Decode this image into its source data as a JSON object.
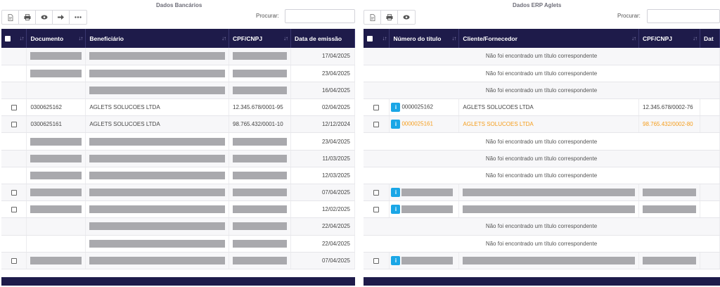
{
  "colors": {
    "header_bg": "#1e1b4a",
    "info_button": "#1aa6e6",
    "highlight_text": "#f59d1b",
    "redaction": "#a9a9ad"
  },
  "left": {
    "title": "Dados Bancários",
    "search_label": "Procurar:",
    "toolbar_icons": [
      "document-icon",
      "print-icon",
      "eye-icon",
      "arrow-right-icon",
      "ellipsis-icon"
    ],
    "columns": [
      "Documento",
      "Beneficiário",
      "CPF/CNPJ",
      "Data de emissão"
    ],
    "rows": [
      {
        "checkbox": false,
        "redacted": true,
        "documento": "",
        "beneficiario": "",
        "cpf": "",
        "data": "17/04/2025"
      },
      {
        "checkbox": false,
        "redacted": true,
        "documento": "",
        "beneficiario": "",
        "cpf": "",
        "data": "23/04/2025"
      },
      {
        "checkbox": false,
        "redacted": true,
        "partial": true,
        "documento": "",
        "beneficiario": "",
        "cpf": "",
        "data": "16/04/2025"
      },
      {
        "checkbox": true,
        "redacted": false,
        "documento": "0300625162",
        "beneficiario": "AGLETS SOLUCOES LTDA",
        "cpf": "12.345.678/0001-95",
        "data": "02/04/2025"
      },
      {
        "checkbox": true,
        "redacted": false,
        "documento": "0300625161",
        "beneficiario": "AGLETS SOLUCOES LTDA",
        "cpf": "98.765.432/0001-10",
        "data": "12/12/2024"
      },
      {
        "checkbox": false,
        "redacted": true,
        "documento": "",
        "beneficiario": "",
        "cpf": "",
        "data": "23/04/2025"
      },
      {
        "checkbox": false,
        "redacted": true,
        "documento": "",
        "beneficiario": "",
        "cpf": "",
        "data": "11/03/2025"
      },
      {
        "checkbox": false,
        "redacted": true,
        "documento": "",
        "beneficiario": "",
        "cpf": "",
        "data": "12/03/2025"
      },
      {
        "checkbox": true,
        "redacted": true,
        "documento": "",
        "beneficiario": "",
        "cpf": "",
        "data": "07/04/2025"
      },
      {
        "checkbox": true,
        "redacted": true,
        "documento": "",
        "beneficiario": "",
        "cpf": "",
        "data": "12/02/2025"
      },
      {
        "checkbox": false,
        "redacted": true,
        "partial": true,
        "documento": "",
        "beneficiario": "",
        "cpf": "",
        "data": "22/04/2025"
      },
      {
        "checkbox": false,
        "redacted": true,
        "partial": true,
        "documento": "",
        "beneficiario": "",
        "cpf": "",
        "data": "22/04/2025"
      },
      {
        "checkbox": true,
        "redacted": true,
        "documento": "",
        "beneficiario": "",
        "cpf": "",
        "data": "07/04/2025"
      }
    ]
  },
  "right": {
    "title": "Dados ERP Aglets",
    "search_label": "Procurar:",
    "toolbar_icons": [
      "document-icon",
      "print-icon",
      "eye-icon"
    ],
    "columns": [
      "Número do título",
      "Cliente/Fornecedor",
      "CPF/CNPJ",
      "Dat"
    ],
    "not_found_text": "Não foi encontrado um título correspondente",
    "rows": [
      {
        "type": "not_found"
      },
      {
        "type": "not_found"
      },
      {
        "type": "not_found"
      },
      {
        "type": "data",
        "numero": "0000025162",
        "cliente": "AGLETS SOLUCOES LTDA",
        "cpf": "12.345.678/0002-76",
        "highlight": false
      },
      {
        "type": "data",
        "numero": "0000025161",
        "cliente": "AGLETS SOLUCOES LTDA",
        "cpf": "98.765.432/0002-80",
        "highlight": true
      },
      {
        "type": "not_found"
      },
      {
        "type": "not_found"
      },
      {
        "type": "not_found"
      },
      {
        "type": "redacted"
      },
      {
        "type": "redacted"
      },
      {
        "type": "not_found"
      },
      {
        "type": "not_found"
      },
      {
        "type": "redacted"
      }
    ]
  }
}
